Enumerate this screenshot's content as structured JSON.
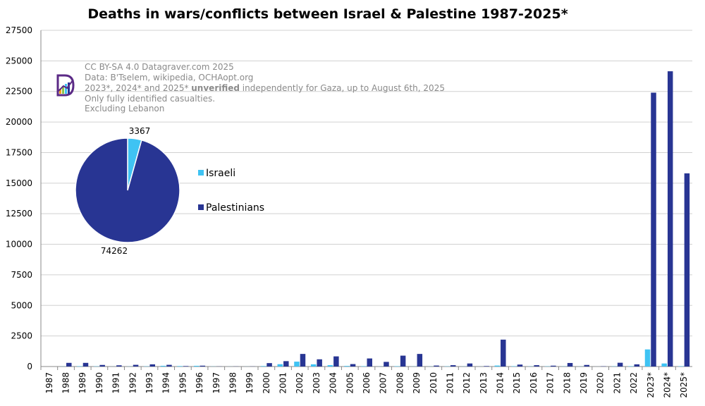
{
  "chart_data": {
    "type": "bar",
    "title": "Deaths in wars/conflicts between Israel & Palestine 1987-2025*",
    "xlabel": "",
    "ylabel": "",
    "ylim": [
      0,
      27500
    ],
    "y_ticks": [
      0,
      2500,
      5000,
      7500,
      10000,
      12500,
      15000,
      17500,
      20000,
      22500,
      25000,
      27500
    ],
    "grid": true,
    "legend_position": "middle-left",
    "categories": [
      "1987",
      "1988",
      "1989",
      "1990",
      "1991",
      "1992",
      "1993",
      "1994",
      "1995",
      "1996",
      "1997",
      "1998",
      "1999",
      "2000",
      "2001",
      "2002",
      "2003",
      "2004",
      "2005",
      "2006",
      "2007",
      "2008",
      "2009",
      "2010",
      "2011",
      "2012",
      "2013",
      "2014",
      "2015",
      "2016",
      "2017",
      "2018",
      "2019",
      "2020",
      "2021",
      "2022",
      "2023*",
      "2024*",
      "2025*"
    ],
    "series": [
      {
        "name": "Israeli",
        "color": "#3fc3f3",
        "values": [
          0,
          10,
          30,
          20,
          5,
          10,
          20,
          60,
          40,
          60,
          10,
          5,
          5,
          40,
          190,
          400,
          180,
          110,
          50,
          30,
          10,
          30,
          10,
          10,
          20,
          10,
          5,
          80,
          30,
          15,
          20,
          15,
          10,
          3,
          20,
          30,
          1400,
          250,
          30
        ]
      },
      {
        "name": "Palestinians",
        "color": "#283593",
        "values": [
          0,
          300,
          300,
          130,
          100,
          140,
          180,
          140,
          40,
          70,
          10,
          10,
          10,
          280,
          440,
          1030,
          590,
          830,
          200,
          660,
          380,
          890,
          1030,
          80,
          110,
          250,
          40,
          2200,
          160,
          110,
          70,
          290,
          130,
          20,
          310,
          180,
          22400,
          24150,
          15800
        ]
      }
    ],
    "pie": {
      "values": [
        3367,
        74262
      ],
      "labels": [
        "3367",
        "74262"
      ],
      "colors": [
        "#3fc3f3",
        "#283593"
      ]
    },
    "legend": {
      "items": [
        {
          "name": "Israeli",
          "color": "#3fc3f3"
        },
        {
          "name": "Palestinians",
          "color": "#283593"
        }
      ]
    },
    "annotations": {
      "line1": "CC BY-SA 4.0 Datagraver.com 2025",
      "line2": "Data: B'Tselem, wikipedia, OCHAopt.org",
      "line3_pre": "2023*, 2024* and 2025* ",
      "line3_bold": "unverified",
      "line3_post": " independently for Gaza, up to August 6th, 2025",
      "line4": "Only fully identified casualties.",
      "line5": "Excluding Lebanon"
    }
  }
}
